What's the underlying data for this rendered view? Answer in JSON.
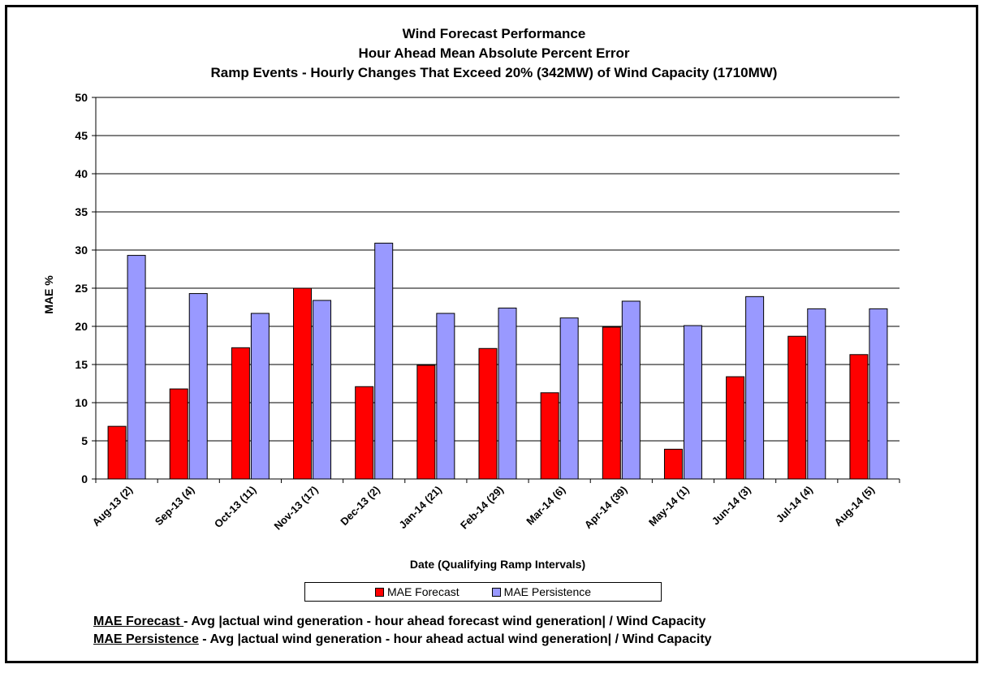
{
  "chart_data": {
    "type": "bar",
    "title_lines": [
      "Wind Forecast Performance",
      "Hour Ahead Mean Absolute Percent Error",
      "Ramp Events - Hourly Changes That Exceed 20% (342MW) of Wind Capacity (1710MW)"
    ],
    "xlabel": "Date (Qualifying Ramp Intervals)",
    "ylabel": "MAE %",
    "ylim": [
      0,
      50
    ],
    "yticks": [
      0,
      5,
      10,
      15,
      20,
      25,
      30,
      35,
      40,
      45,
      50
    ],
    "grid": true,
    "legend_position": "bottom",
    "categories": [
      "Aug-13 (2)",
      "Sep-13 (4)",
      "Oct-13 (11)",
      "Nov-13 (17)",
      "Dec-13 (2)",
      "Jan-14 (21)",
      "Feb-14 (29)",
      "Mar-14 (6)",
      "Apr-14 (39)",
      "May-14 (1)",
      "Jun-14 (3)",
      "Jul-14 (4)",
      "Aug-14 (5)"
    ],
    "series": [
      {
        "name": "MAE Forecast",
        "color": "#ff0000",
        "values": [
          6.9,
          11.8,
          17.2,
          25.0,
          12.1,
          14.9,
          17.1,
          11.3,
          19.9,
          3.9,
          13.4,
          18.7,
          16.3
        ]
      },
      {
        "name": "MAE Persistence",
        "color": "#9999ff",
        "values": [
          29.3,
          24.3,
          21.7,
          23.4,
          30.9,
          21.7,
          22.4,
          21.1,
          23.3,
          20.1,
          23.9,
          22.3,
          22.3
        ]
      }
    ]
  },
  "notes": [
    {
      "term": "MAE Forecast ",
      "text": "- Avg |actual wind generation - hour ahead forecast wind generation| / Wind Capacity"
    },
    {
      "term": "MAE Persistence",
      "text": " - Avg |actual wind generation - hour ahead actual wind generation| / Wind Capacity"
    }
  ]
}
